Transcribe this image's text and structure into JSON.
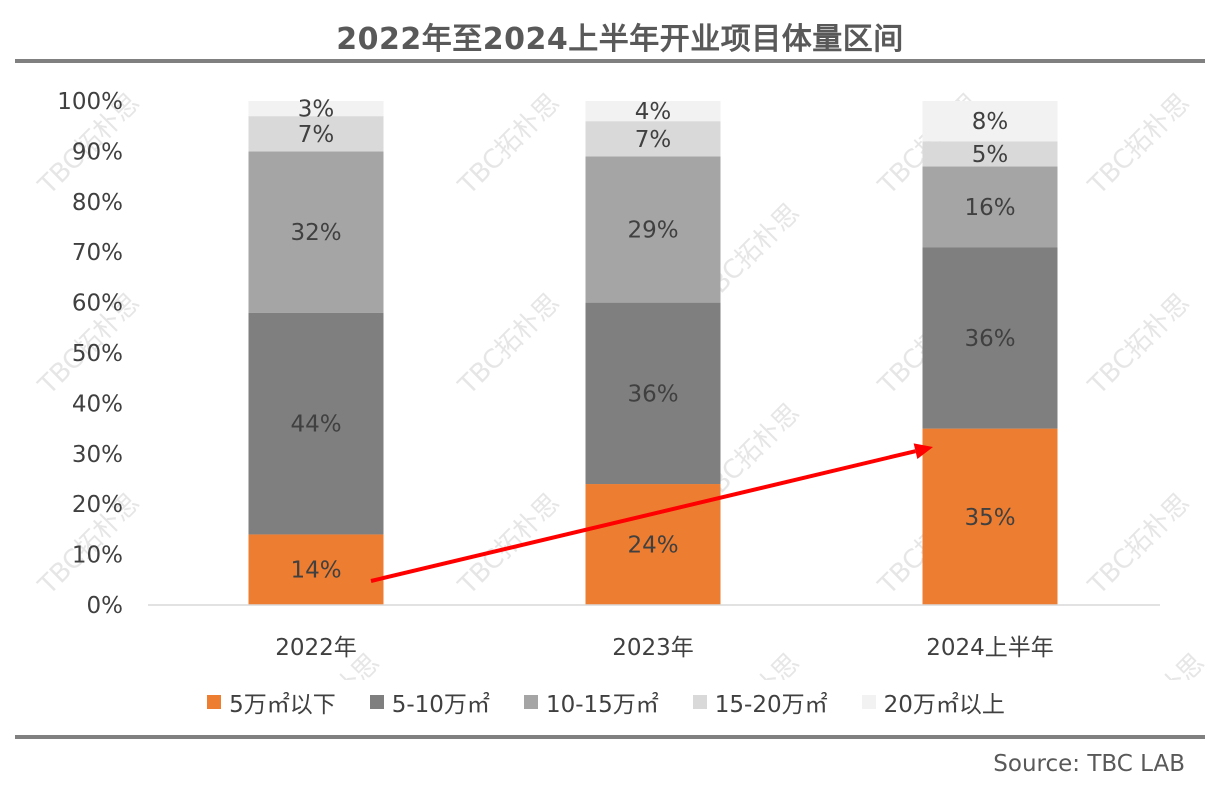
{
  "chart_data": {
    "type": "bar",
    "stacked": true,
    "title": "2022年至2024上半年开业项目体量区间",
    "categories": [
      "2022年",
      "2023年",
      "2024上半年"
    ],
    "series": [
      {
        "name": "5万㎡以下",
        "values": [
          14,
          24,
          35
        ],
        "labels": [
          "14%",
          "24%",
          "35%"
        ],
        "color": "#ED7D31"
      },
      {
        "name": "5-10万㎡",
        "values": [
          44,
          36,
          36
        ],
        "labels": [
          "44%",
          "36%",
          "36%"
        ],
        "color": "#7F7F7F"
      },
      {
        "name": "10-15万㎡",
        "values": [
          32,
          29,
          16
        ],
        "labels": [
          "32%",
          "29%",
          "16%"
        ],
        "color": "#A5A5A5"
      },
      {
        "name": "15-20万㎡",
        "values": [
          7,
          7,
          5
        ],
        "labels": [
          "7%",
          "7%",
          "5%"
        ],
        "color": "#D9D9D9"
      },
      {
        "name": "20万㎡以上",
        "values": [
          3,
          4,
          8
        ],
        "labels": [
          "3%",
          "4%",
          "8%"
        ],
        "color": "#F2F2F2"
      }
    ],
    "yticks": [
      "0%",
      "10%",
      "20%",
      "30%",
      "40%",
      "50%",
      "60%",
      "70%",
      "80%",
      "90%",
      "100%"
    ],
    "ylim": [
      0,
      100
    ],
    "legend_position": "bottom",
    "annotation": {
      "type": "arrow",
      "color": "#FF0000",
      "from_category": "2022年",
      "to_category": "2024上半年"
    }
  },
  "watermark": "TBC拓朴思",
  "source": "Source: TBC LAB"
}
